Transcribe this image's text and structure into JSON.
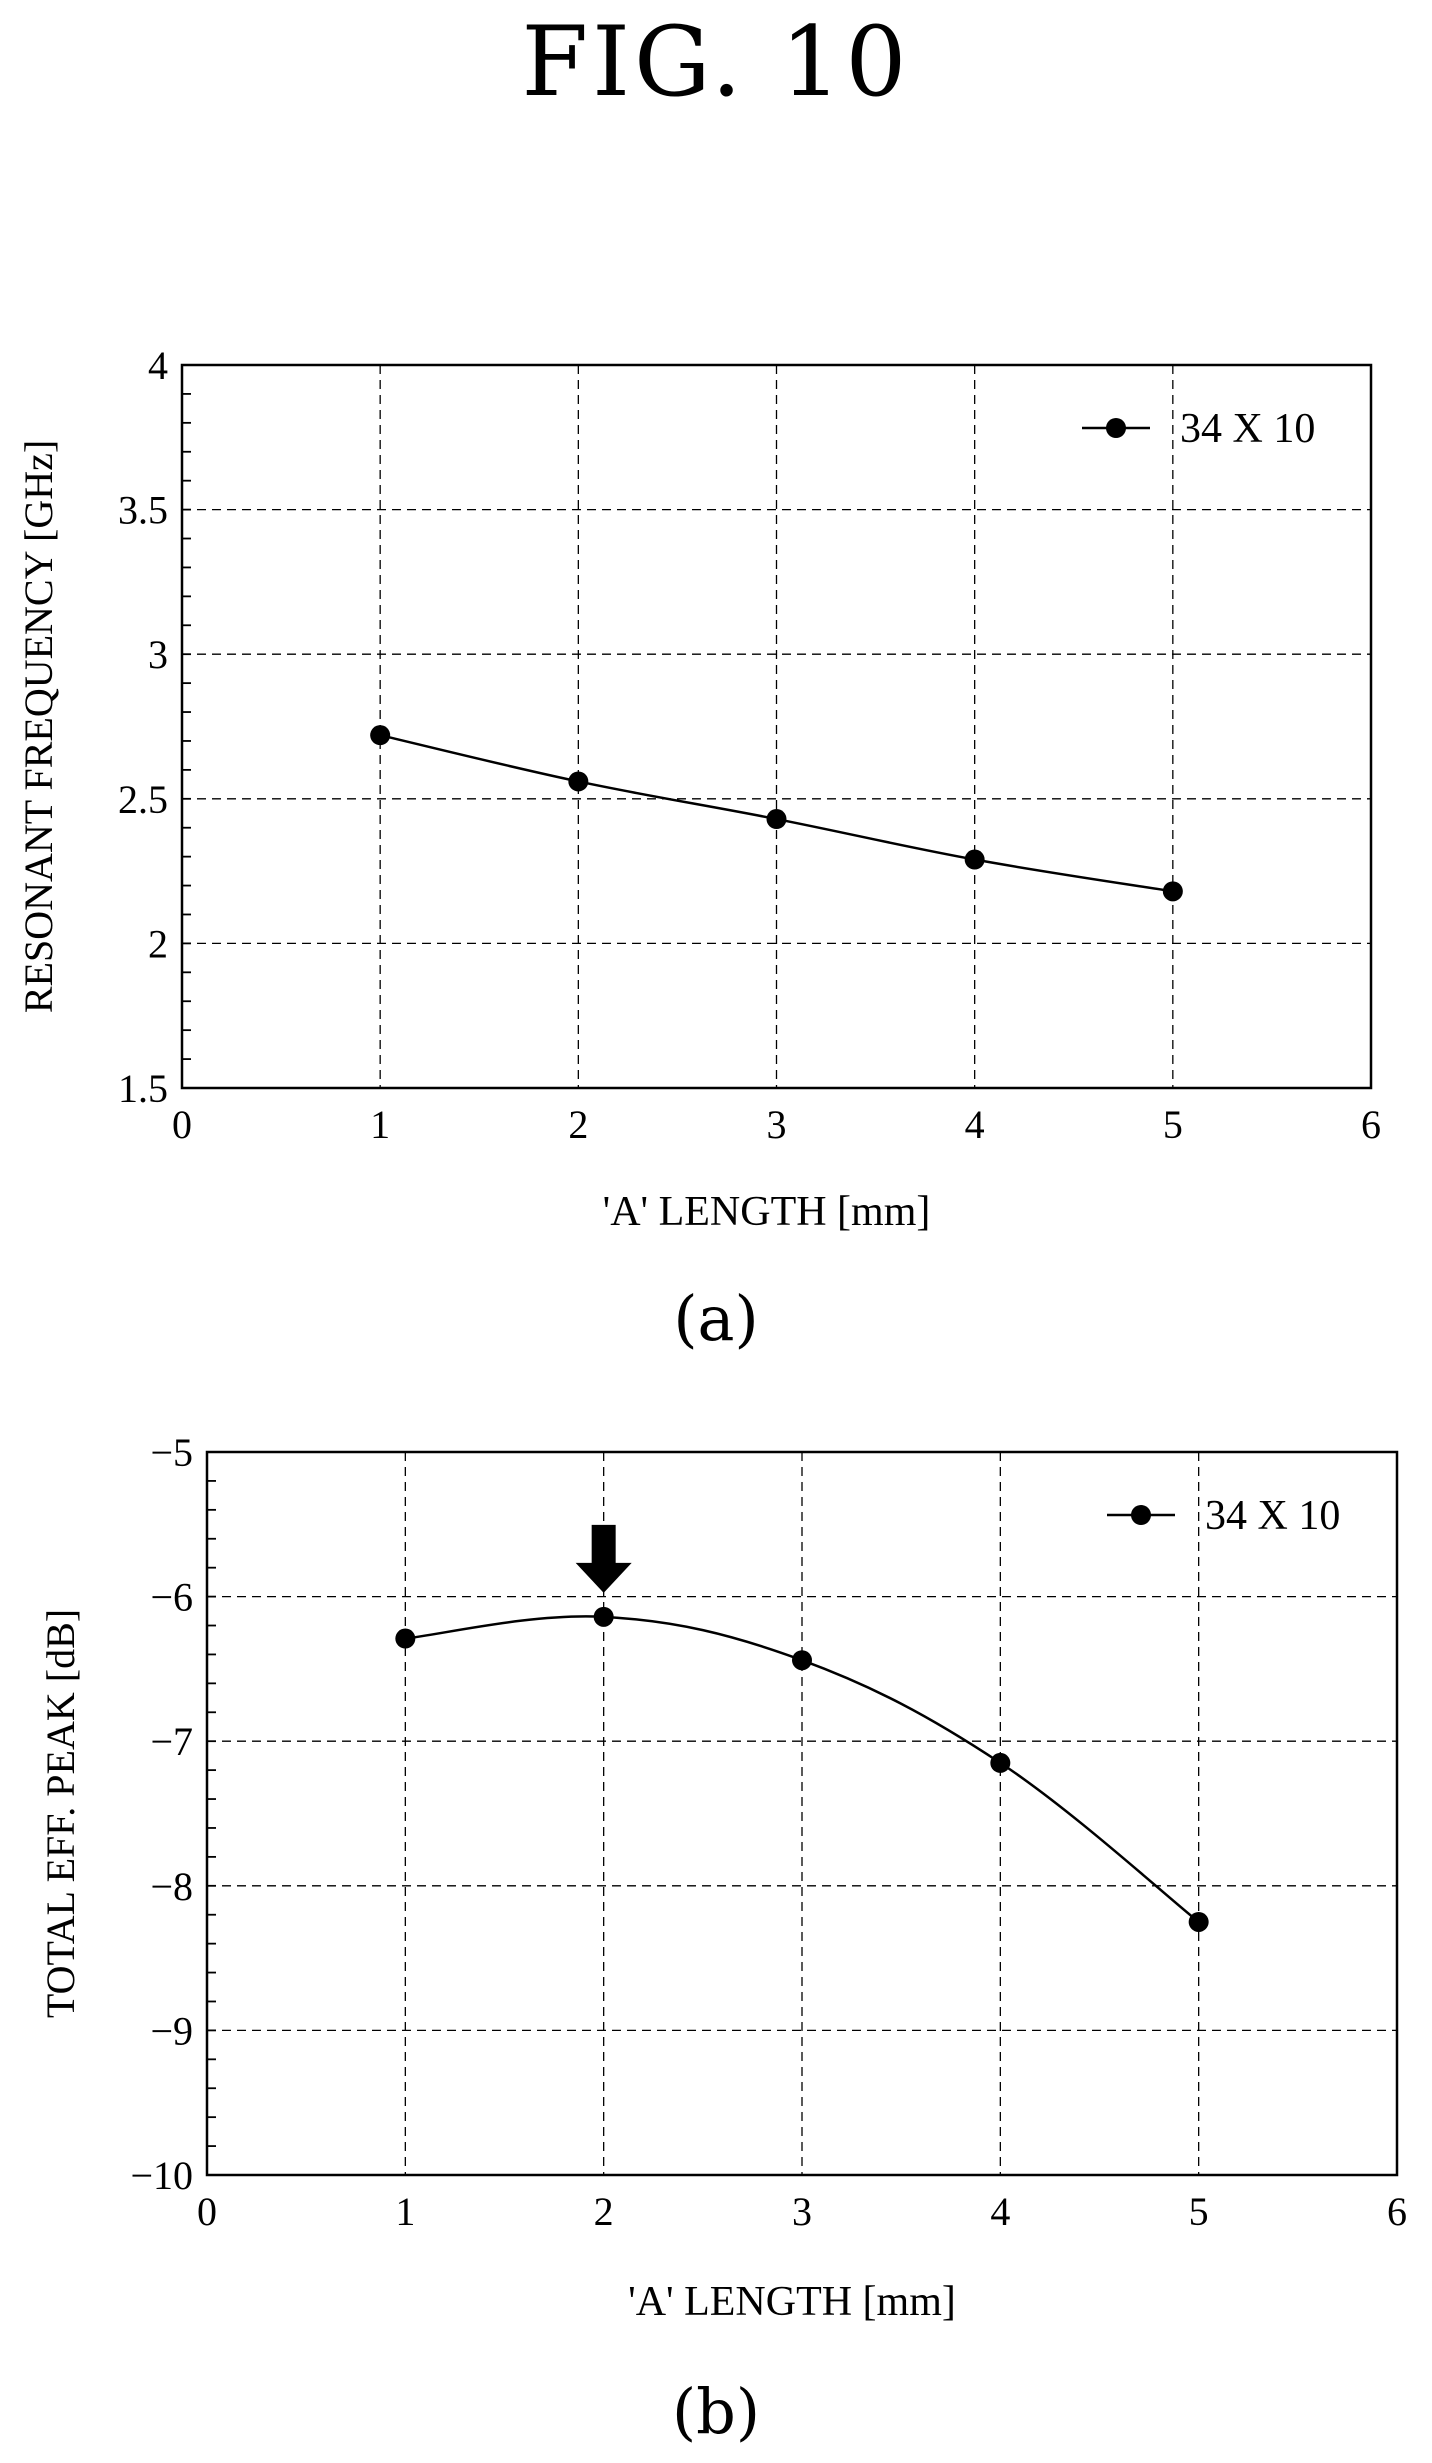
{
  "figure_title": "FIG. 10",
  "panel_labels": [
    "(a)",
    "(b)"
  ],
  "chart_data": [
    {
      "type": "line",
      "panel": "(a)",
      "xlabel": "'A' LENGTH [mm]",
      "ylabel": "RESONANT FREQUENCY [GHz]",
      "xlim": [
        0,
        6
      ],
      "ylim": [
        1.5,
        4
      ],
      "x_ticks": [
        "0",
        "1",
        "2",
        "3",
        "4",
        "5",
        "6"
      ],
      "y_ticks": [
        "1.5",
        "2",
        "2.5",
        "3",
        "3.5",
        "4"
      ],
      "x_tick_values": [
        0,
        1,
        2,
        3,
        4,
        5,
        6
      ],
      "y_tick_values": [
        1.5,
        2,
        2.5,
        3,
        3.5,
        4
      ],
      "grid": true,
      "legend_position": "top-right",
      "series": [
        {
          "name": "34 X 10",
          "x": [
            1,
            2,
            3,
            4,
            5
          ],
          "y": [
            2.72,
            2.56,
            2.43,
            2.29,
            2.18
          ]
        }
      ]
    },
    {
      "type": "line",
      "panel": "(b)",
      "xlabel": "'A' LENGTH [mm]",
      "ylabel": "TOTAL EFF. PEAK [dB]",
      "xlim": [
        0,
        6
      ],
      "ylim": [
        -10,
        -5
      ],
      "x_ticks": [
        "0",
        "1",
        "2",
        "3",
        "4",
        "5",
        "6"
      ],
      "y_ticks": [
        "−10",
        "−9",
        "−8",
        "−7",
        "−6",
        "−5"
      ],
      "x_tick_values": [
        0,
        1,
        2,
        3,
        4,
        5,
        6
      ],
      "y_tick_values": [
        -10,
        -9,
        -8,
        -7,
        -6,
        -5
      ],
      "grid": true,
      "legend_position": "top-right",
      "annotation": {
        "type": "down-arrow",
        "x": 2
      },
      "series": [
        {
          "name": "34 X 10",
          "x": [
            1,
            2,
            3,
            4,
            5
          ],
          "y": [
            -6.29,
            -6.14,
            -6.44,
            -7.15,
            -8.25
          ]
        }
      ]
    }
  ]
}
